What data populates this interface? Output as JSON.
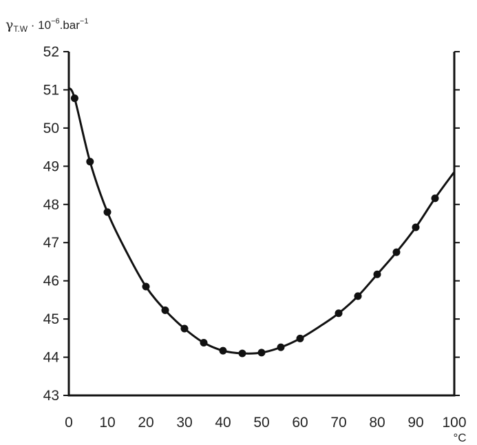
{
  "chart_data": {
    "type": "line",
    "title": "",
    "ylabel": {
      "symbol": "γ",
      "subscript": "T.W",
      "middle": " · 10",
      "exponent": "−6",
      "unit": ".bar",
      "unit_exponent": "−1"
    },
    "xunit": "°C",
    "xlim": [
      0,
      100
    ],
    "ylim": [
      43,
      52
    ],
    "x_ticks": [
      0,
      10,
      20,
      30,
      40,
      50,
      60,
      70,
      80,
      90,
      100
    ],
    "y_ticks": [
      43,
      44,
      45,
      46,
      47,
      48,
      49,
      50,
      51,
      52
    ],
    "x_tick_labels": [
      "0",
      "10",
      "20",
      "30",
      "40",
      "50",
      "60",
      "70",
      "80",
      "90",
      "100"
    ],
    "y_tick_labels": [
      "43",
      "44",
      "45",
      "46",
      "47",
      "48",
      "49",
      "50",
      "51",
      "52"
    ],
    "grid": false,
    "series": [
      {
        "points_x": [
          1.5,
          5.5,
          10,
          20,
          25,
          30,
          35,
          40,
          45,
          50,
          55,
          60,
          70,
          75,
          80,
          85,
          90,
          95
        ],
        "points_y": [
          50.78,
          49.12,
          47.8,
          45.85,
          45.23,
          44.75,
          44.38,
          44.17,
          44.1,
          44.12,
          44.26,
          44.49,
          45.15,
          45.6,
          46.17,
          46.75,
          47.4,
          48.16
        ],
        "curve_x": [
          0,
          1.5,
          5.5,
          10,
          15,
          20,
          25,
          30,
          35,
          40,
          45,
          50,
          55,
          60,
          65,
          70,
          75,
          80,
          85,
          90,
          95,
          100
        ],
        "curve_y": [
          51.05,
          50.78,
          49.12,
          47.8,
          46.75,
          45.85,
          45.23,
          44.75,
          44.38,
          44.17,
          44.1,
          44.12,
          44.26,
          44.49,
          44.8,
          45.15,
          45.6,
          46.17,
          46.75,
          47.4,
          48.16,
          48.85
        ]
      }
    ],
    "colors": {
      "ink": "#111111",
      "text": "#222222"
    }
  }
}
